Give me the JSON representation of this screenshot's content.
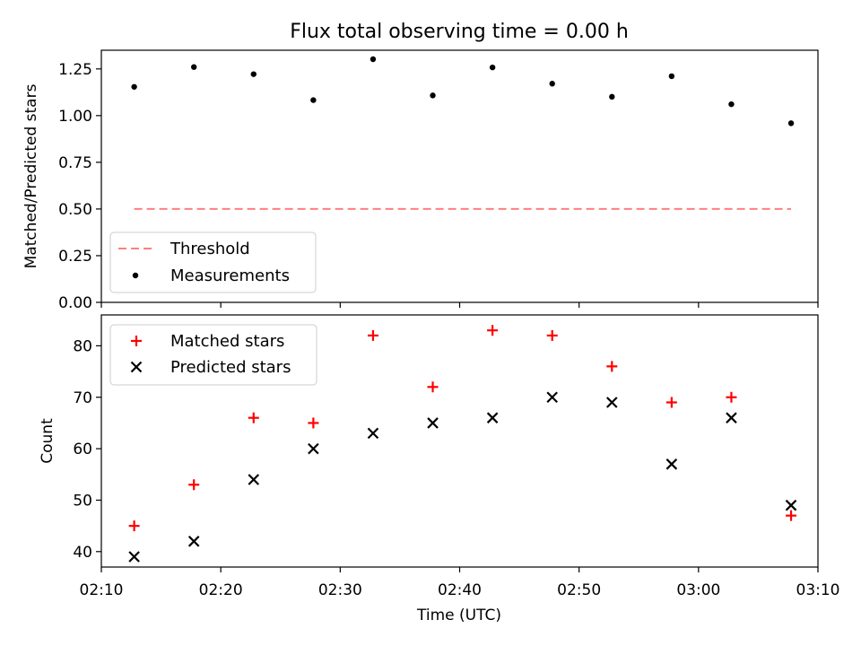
{
  "figure": {
    "title": "Flux total observing time = 0.00 h"
  },
  "chart_data": [
    {
      "type": "scatter",
      "panel": "top",
      "ylabel": "Matched/Predicted stars",
      "ylim": [
        0,
        1.35
      ],
      "yticks": [
        0.0,
        0.25,
        0.5,
        0.75,
        1.0,
        1.25
      ],
      "ytick_labels": [
        "0.00",
        "0.25",
        "0.50",
        "0.75",
        "1.00",
        "1.25"
      ],
      "threshold": {
        "name": "Threshold",
        "y": 0.5,
        "x_range": [
          "02:12:45",
          "03:07:45"
        ],
        "color": "#ff7f7f",
        "style": "dashed"
      },
      "series": [
        {
          "name": "Measurements",
          "marker": "dot",
          "color": "#000000",
          "x": [
            "02:12:45",
            "02:17:45",
            "02:22:45",
            "02:27:45",
            "02:32:45",
            "02:37:45",
            "02:42:45",
            "02:47:45",
            "02:52:45",
            "02:57:45",
            "03:02:45",
            "03:07:45"
          ],
          "y": [
            1.154,
            1.26,
            1.222,
            1.083,
            1.302,
            1.108,
            1.258,
            1.171,
            1.101,
            1.211,
            1.061,
            0.959
          ]
        }
      ],
      "legend": {
        "placement": "lower-left",
        "entries": [
          "Threshold",
          "Measurements"
        ]
      },
      "grid": false
    },
    {
      "type": "scatter",
      "panel": "bottom",
      "xlabel": "Time (UTC)",
      "ylabel": "Count",
      "ylim": [
        37,
        86
      ],
      "yticks": [
        40,
        50,
        60,
        70,
        80
      ],
      "xlim": [
        "02:10",
        "03:10"
      ],
      "xticks": [
        "02:10",
        "02:20",
        "02:30",
        "02:40",
        "02:50",
        "03:00",
        "03:10"
      ],
      "series": [
        {
          "name": "Matched stars",
          "marker": "plus",
          "color": "#ff0000",
          "x": [
            "02:12:45",
            "02:17:45",
            "02:22:45",
            "02:27:45",
            "02:32:45",
            "02:37:45",
            "02:42:45",
            "02:47:45",
            "02:52:45",
            "02:57:45",
            "03:02:45",
            "03:07:45"
          ],
          "y": [
            45,
            53,
            66,
            65,
            82,
            72,
            83,
            82,
            76,
            69,
            70,
            47
          ]
        },
        {
          "name": "Predicted stars",
          "marker": "x",
          "color": "#000000",
          "x": [
            "02:12:45",
            "02:17:45",
            "02:22:45",
            "02:27:45",
            "02:32:45",
            "02:37:45",
            "02:42:45",
            "02:47:45",
            "02:52:45",
            "02:57:45",
            "03:02:45",
            "03:07:45"
          ],
          "y": [
            39,
            42,
            54,
            60,
            63,
            65,
            66,
            70,
            69,
            57,
            66,
            49
          ]
        }
      ],
      "legend": {
        "placement": "upper-left",
        "entries": [
          "Matched stars",
          "Predicted stars"
        ]
      },
      "grid": false
    }
  ]
}
